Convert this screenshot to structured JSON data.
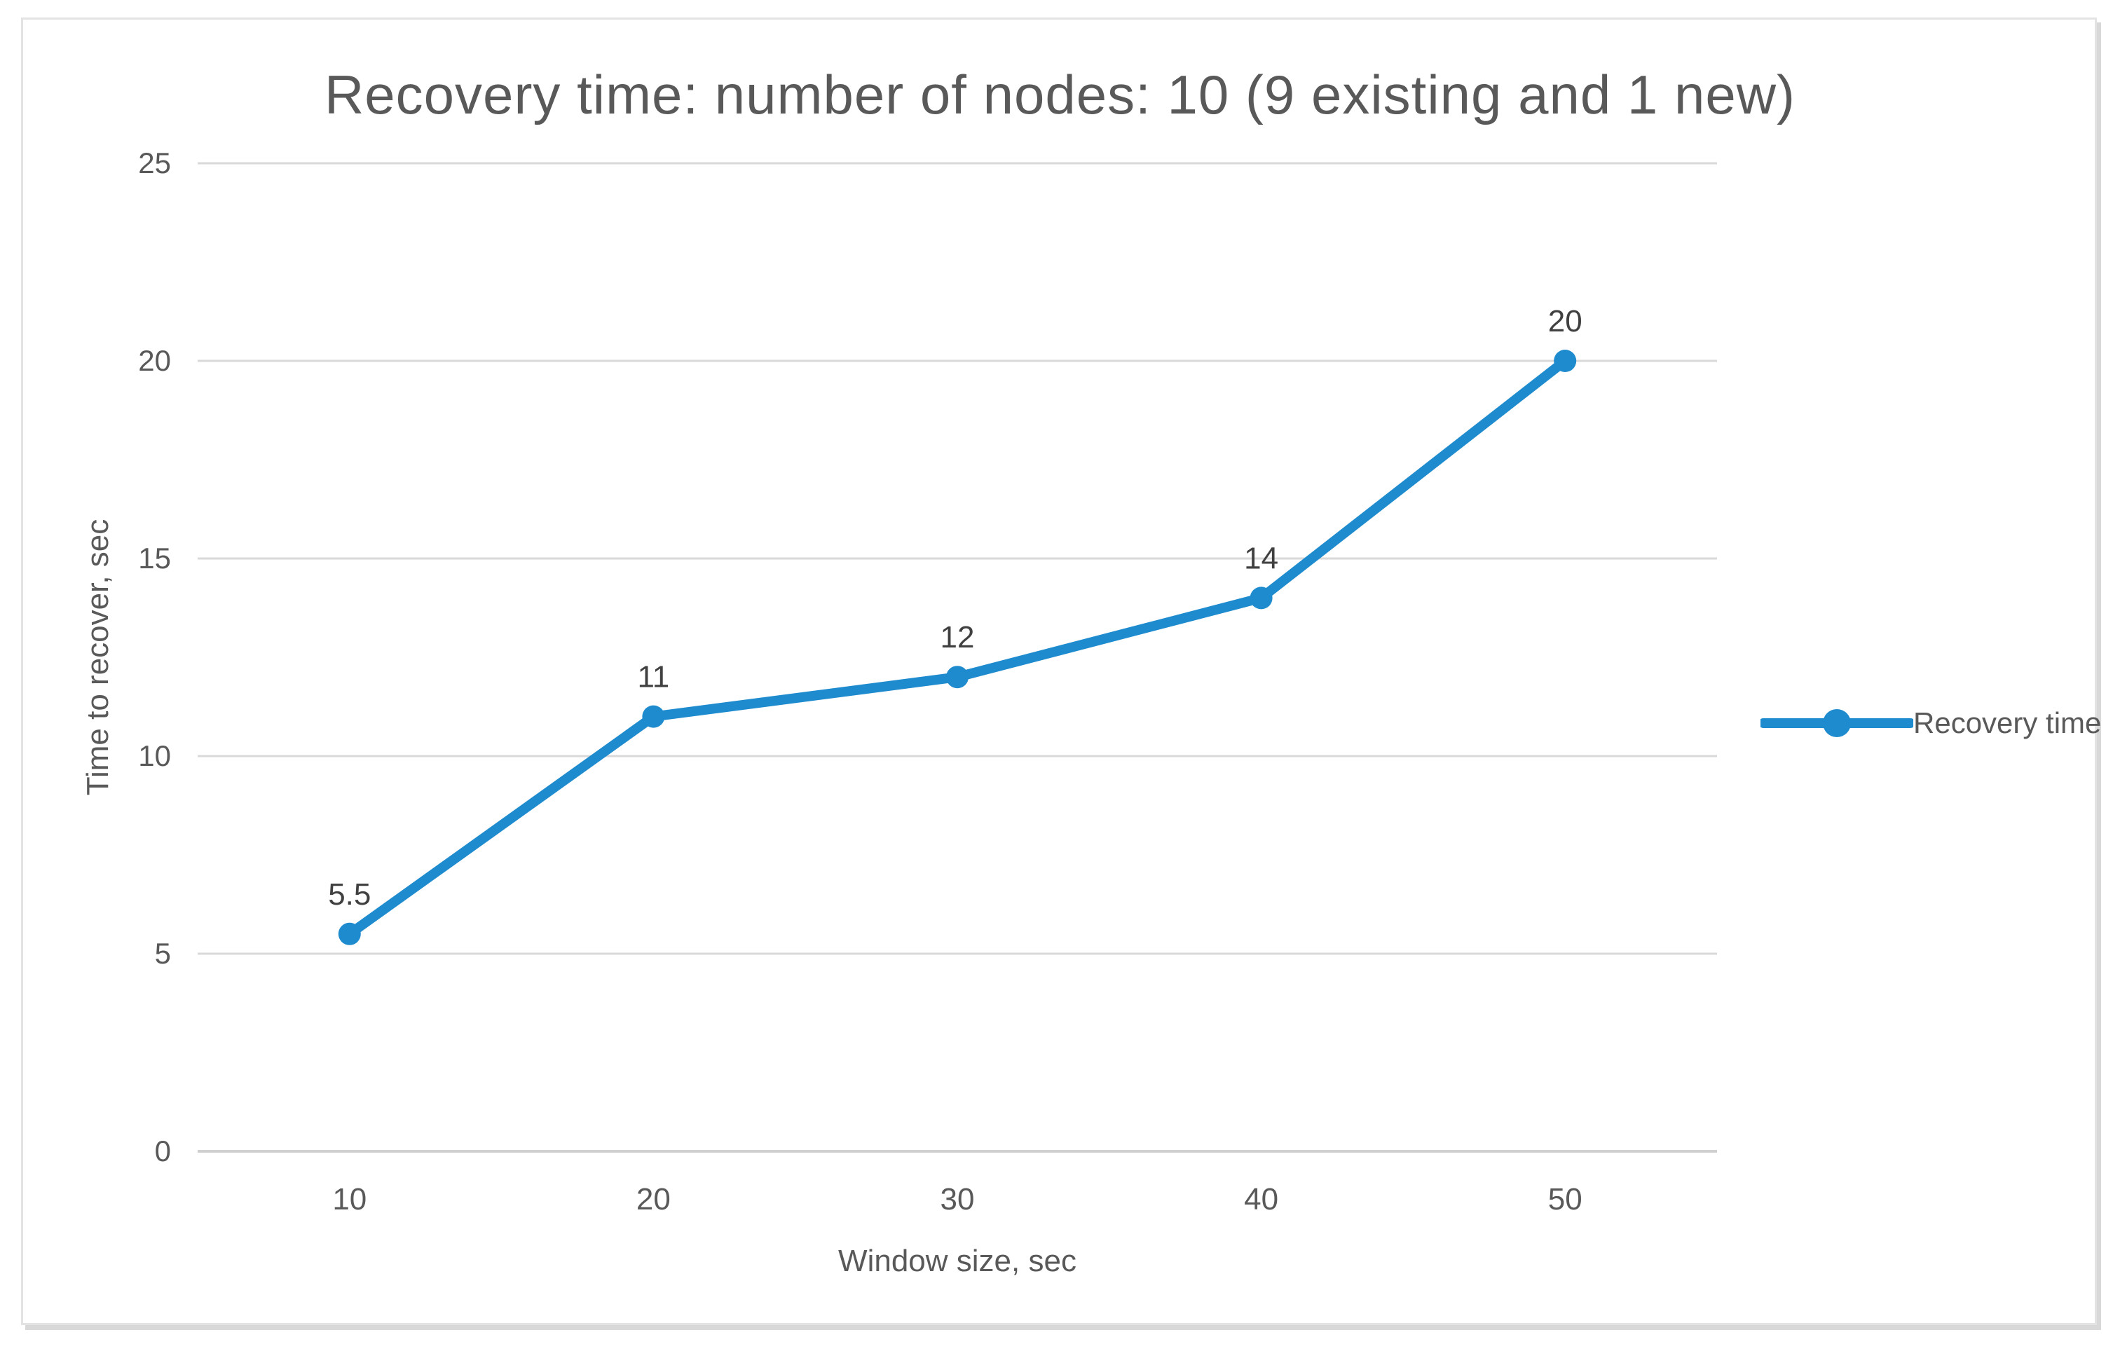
{
  "chart_data": {
    "type": "line",
    "title": "Recovery time: number of nodes: 10 (9 existing and 1 new)",
    "xlabel": "Window size, sec",
    "ylabel": "Time to recover, sec",
    "categories": [
      "10",
      "20",
      "30",
      "40",
      "50"
    ],
    "series": [
      {
        "name": "Recovery time",
        "values": [
          5.5,
          11,
          12,
          14,
          20
        ]
      }
    ],
    "data_labels": [
      "5.5",
      "11",
      "12",
      "14",
      "20"
    ],
    "ylim": [
      0,
      25
    ],
    "yticks": [
      0,
      5,
      10,
      15,
      20,
      25
    ],
    "grid": true,
    "legend_position": "right",
    "colors": {
      "series": "#1E8BCE",
      "grid": "#D9D9D9",
      "axis_line": "#D0D0D0",
      "tick_text": "#595959",
      "data_label_text": "#404040",
      "title_text": "#595959",
      "frame_border": "#E3E3E3"
    }
  }
}
